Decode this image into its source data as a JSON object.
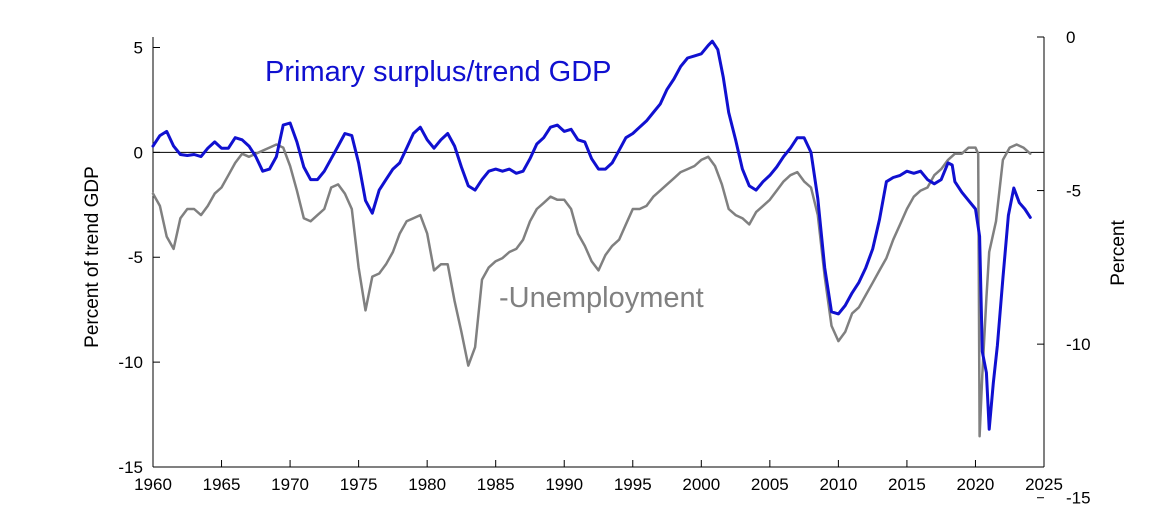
{
  "chart_data": {
    "type": "line",
    "title": "",
    "xlabel": "",
    "ylabel_left": "Percent of trend GDP",
    "ylabel_right": "Percent",
    "xlim": [
      1960,
      2025
    ],
    "ylim_left": [
      -15,
      5.5
    ],
    "ylim_right": [
      -14,
      0
    ],
    "grid": false,
    "legend": "inline labels",
    "x_ticks": [
      "1960",
      "1965",
      "1970",
      "1975",
      "1980",
      "1985",
      "1990",
      "1995",
      "2000",
      "2005",
      "2010",
      "2015",
      "2020",
      "2025"
    ],
    "y_ticks_left": [
      "5",
      "0",
      "-5",
      "-10",
      "-15"
    ],
    "y_ticks_right": [
      "0",
      "-5",
      "-10",
      "-15"
    ],
    "series": [
      {
        "name": "Primary surplus/trend GDP",
        "axis": "left",
        "color": "#1010d0",
        "points": [
          [
            1960.0,
            0.3
          ],
          [
            1960.5,
            0.8
          ],
          [
            1961.0,
            1.0
          ],
          [
            1961.5,
            0.3
          ],
          [
            1962.0,
            -0.1
          ],
          [
            1962.5,
            -0.15
          ],
          [
            1963.0,
            -0.1
          ],
          [
            1963.5,
            -0.2
          ],
          [
            1964.0,
            0.2
          ],
          [
            1964.5,
            0.5
          ],
          [
            1965.0,
            0.2
          ],
          [
            1965.5,
            0.2
          ],
          [
            1966.0,
            0.7
          ],
          [
            1966.5,
            0.6
          ],
          [
            1967.0,
            0.3
          ],
          [
            1967.5,
            -0.2
          ],
          [
            1968.0,
            -0.9
          ],
          [
            1968.5,
            -0.8
          ],
          [
            1969.0,
            -0.2
          ],
          [
            1969.5,
            1.3
          ],
          [
            1970.0,
            1.4
          ],
          [
            1970.5,
            0.5
          ],
          [
            1971.0,
            -0.7
          ],
          [
            1971.5,
            -1.3
          ],
          [
            1972.0,
            -1.3
          ],
          [
            1972.5,
            -0.9
          ],
          [
            1973.0,
            -0.3
          ],
          [
            1973.5,
            0.3
          ],
          [
            1974.0,
            0.9
          ],
          [
            1974.5,
            0.8
          ],
          [
            1975.0,
            -0.5
          ],
          [
            1975.5,
            -2.3
          ],
          [
            1976.0,
            -2.9
          ],
          [
            1976.5,
            -1.8
          ],
          [
            1977.0,
            -1.3
          ],
          [
            1977.5,
            -0.8
          ],
          [
            1978.0,
            -0.5
          ],
          [
            1978.5,
            0.2
          ],
          [
            1979.0,
            0.9
          ],
          [
            1979.5,
            1.2
          ],
          [
            1980.0,
            0.6
          ],
          [
            1980.5,
            0.2
          ],
          [
            1981.0,
            0.6
          ],
          [
            1981.5,
            0.9
          ],
          [
            1982.0,
            0.3
          ],
          [
            1982.5,
            -0.7
          ],
          [
            1983.0,
            -1.6
          ],
          [
            1983.5,
            -1.8
          ],
          [
            1984.0,
            -1.3
          ],
          [
            1984.5,
            -0.9
          ],
          [
            1985.0,
            -0.8
          ],
          [
            1985.5,
            -0.9
          ],
          [
            1986.0,
            -0.8
          ],
          [
            1986.5,
            -1.0
          ],
          [
            1987.0,
            -0.9
          ],
          [
            1987.5,
            -0.3
          ],
          [
            1988.0,
            0.4
          ],
          [
            1988.5,
            0.7
          ],
          [
            1989.0,
            1.2
          ],
          [
            1989.5,
            1.3
          ],
          [
            1990.0,
            1.0
          ],
          [
            1990.5,
            1.1
          ],
          [
            1991.0,
            0.6
          ],
          [
            1991.5,
            0.5
          ],
          [
            1992.0,
            -0.3
          ],
          [
            1992.5,
            -0.8
          ],
          [
            1993.0,
            -0.8
          ],
          [
            1993.5,
            -0.5
          ],
          [
            1994.0,
            0.1
          ],
          [
            1994.5,
            0.7
          ],
          [
            1995.0,
            0.9
          ],
          [
            1995.5,
            1.2
          ],
          [
            1996.0,
            1.5
          ],
          [
            1996.5,
            1.9
          ],
          [
            1997.0,
            2.3
          ],
          [
            1997.5,
            3.0
          ],
          [
            1998.0,
            3.5
          ],
          [
            1998.5,
            4.1
          ],
          [
            1999.0,
            4.5
          ],
          [
            1999.5,
            4.6
          ],
          [
            2000.0,
            4.7
          ],
          [
            2000.5,
            5.1
          ],
          [
            2000.8,
            5.3
          ],
          [
            2001.2,
            4.9
          ],
          [
            2001.6,
            3.6
          ],
          [
            2002.0,
            1.9
          ],
          [
            2002.5,
            0.6
          ],
          [
            2003.0,
            -0.8
          ],
          [
            2003.5,
            -1.6
          ],
          [
            2004.0,
            -1.8
          ],
          [
            2004.5,
            -1.4
          ],
          [
            2005.0,
            -1.1
          ],
          [
            2005.5,
            -0.7
          ],
          [
            2006.0,
            -0.2
          ],
          [
            2006.5,
            0.2
          ],
          [
            2007.0,
            0.7
          ],
          [
            2007.5,
            0.7
          ],
          [
            2008.0,
            0.0
          ],
          [
            2008.5,
            -2.2
          ],
          [
            2009.0,
            -5.5
          ],
          [
            2009.5,
            -7.6
          ],
          [
            2010.0,
            -7.7
          ],
          [
            2010.5,
            -7.3
          ],
          [
            2011.0,
            -6.7
          ],
          [
            2011.5,
            -6.2
          ],
          [
            2012.0,
            -5.5
          ],
          [
            2012.5,
            -4.6
          ],
          [
            2013.0,
            -3.2
          ],
          [
            2013.5,
            -1.4
          ],
          [
            2014.0,
            -1.2
          ],
          [
            2014.5,
            -1.1
          ],
          [
            2015.0,
            -0.9
          ],
          [
            2015.5,
            -1.0
          ],
          [
            2016.0,
            -0.9
          ],
          [
            2016.5,
            -1.3
          ],
          [
            2017.0,
            -1.5
          ],
          [
            2017.5,
            -1.3
          ],
          [
            2018.0,
            -0.5
          ],
          [
            2018.3,
            -0.6
          ],
          [
            2018.5,
            -1.4
          ],
          [
            2019.0,
            -1.9
          ],
          [
            2019.5,
            -2.3
          ],
          [
            2020.0,
            -2.7
          ],
          [
            2020.3,
            -4.0
          ],
          [
            2020.5,
            -9.5
          ],
          [
            2020.8,
            -10.5
          ],
          [
            2021.0,
            -13.2
          ],
          [
            2021.3,
            -11.0
          ],
          [
            2021.6,
            -9.2
          ],
          [
            2022.0,
            -6.0
          ],
          [
            2022.4,
            -3.0
          ],
          [
            2022.8,
            -1.7
          ],
          [
            2023.2,
            -2.4
          ],
          [
            2023.6,
            -2.7
          ],
          [
            2024.0,
            -3.1
          ]
        ]
      },
      {
        "name": "-Unemployment",
        "axis": "right",
        "color": "#808080",
        "points": [
          [
            1960.0,
            -5.1
          ],
          [
            1960.5,
            -5.5
          ],
          [
            1961.0,
            -6.5
          ],
          [
            1961.5,
            -6.9
          ],
          [
            1962.0,
            -5.9
          ],
          [
            1962.5,
            -5.6
          ],
          [
            1963.0,
            -5.6
          ],
          [
            1963.5,
            -5.8
          ],
          [
            1964.0,
            -5.5
          ],
          [
            1964.5,
            -5.1
          ],
          [
            1965.0,
            -4.9
          ],
          [
            1965.5,
            -4.5
          ],
          [
            1966.0,
            -4.1
          ],
          [
            1966.5,
            -3.8
          ],
          [
            1967.0,
            -3.9
          ],
          [
            1967.5,
            -3.8
          ],
          [
            1968.0,
            -3.7
          ],
          [
            1968.5,
            -3.6
          ],
          [
            1969.0,
            -3.5
          ],
          [
            1969.5,
            -3.6
          ],
          [
            1970.0,
            -4.2
          ],
          [
            1970.5,
            -5.0
          ],
          [
            1971.0,
            -5.9
          ],
          [
            1971.5,
            -6.0
          ],
          [
            1972.0,
            -5.8
          ],
          [
            1972.5,
            -5.6
          ],
          [
            1973.0,
            -4.9
          ],
          [
            1973.5,
            -4.8
          ],
          [
            1974.0,
            -5.1
          ],
          [
            1974.5,
            -5.6
          ],
          [
            1975.0,
            -7.5
          ],
          [
            1975.5,
            -8.9
          ],
          [
            1976.0,
            -7.8
          ],
          [
            1976.5,
            -7.7
          ],
          [
            1977.0,
            -7.4
          ],
          [
            1977.5,
            -7.0
          ],
          [
            1978.0,
            -6.4
          ],
          [
            1978.5,
            -6.0
          ],
          [
            1979.0,
            -5.9
          ],
          [
            1979.5,
            -5.8
          ],
          [
            1980.0,
            -6.4
          ],
          [
            1980.5,
            -7.6
          ],
          [
            1981.0,
            -7.4
          ],
          [
            1981.5,
            -7.4
          ],
          [
            1982.0,
            -8.6
          ],
          [
            1982.5,
            -9.6
          ],
          [
            1983.0,
            -10.7
          ],
          [
            1983.5,
            -10.1
          ],
          [
            1984.0,
            -7.9
          ],
          [
            1984.5,
            -7.5
          ],
          [
            1985.0,
            -7.3
          ],
          [
            1985.5,
            -7.2
          ],
          [
            1986.0,
            -7.0
          ],
          [
            1986.5,
            -6.9
          ],
          [
            1987.0,
            -6.6
          ],
          [
            1987.5,
            -6.0
          ],
          [
            1988.0,
            -5.6
          ],
          [
            1988.5,
            -5.4
          ],
          [
            1989.0,
            -5.2
          ],
          [
            1989.5,
            -5.3
          ],
          [
            1990.0,
            -5.3
          ],
          [
            1990.5,
            -5.6
          ],
          [
            1991.0,
            -6.4
          ],
          [
            1991.5,
            -6.8
          ],
          [
            1992.0,
            -7.3
          ],
          [
            1992.5,
            -7.6
          ],
          [
            1993.0,
            -7.1
          ],
          [
            1993.5,
            -6.8
          ],
          [
            1994.0,
            -6.6
          ],
          [
            1994.5,
            -6.1
          ],
          [
            1995.0,
            -5.6
          ],
          [
            1995.5,
            -5.6
          ],
          [
            1996.0,
            -5.5
          ],
          [
            1996.5,
            -5.2
          ],
          [
            1997.0,
            -5.0
          ],
          [
            1997.5,
            -4.8
          ],
          [
            1998.0,
            -4.6
          ],
          [
            1998.5,
            -4.4
          ],
          [
            1999.0,
            -4.3
          ],
          [
            1999.5,
            -4.2
          ],
          [
            2000.0,
            -4.0
          ],
          [
            2000.5,
            -3.9
          ],
          [
            2001.0,
            -4.2
          ],
          [
            2001.5,
            -4.8
          ],
          [
            2002.0,
            -5.6
          ],
          [
            2002.5,
            -5.8
          ],
          [
            2003.0,
            -5.9
          ],
          [
            2003.5,
            -6.1
          ],
          [
            2004.0,
            -5.7
          ],
          [
            2004.5,
            -5.5
          ],
          [
            2005.0,
            -5.3
          ],
          [
            2005.5,
            -5.0
          ],
          [
            2006.0,
            -4.7
          ],
          [
            2006.5,
            -4.5
          ],
          [
            2007.0,
            -4.4
          ],
          [
            2007.5,
            -4.7
          ],
          [
            2008.0,
            -4.9
          ],
          [
            2008.5,
            -5.8
          ],
          [
            2009.0,
            -7.8
          ],
          [
            2009.5,
            -9.4
          ],
          [
            2010.0,
            -9.9
          ],
          [
            2010.5,
            -9.6
          ],
          [
            2011.0,
            -9.0
          ],
          [
            2011.5,
            -8.8
          ],
          [
            2012.0,
            -8.4
          ],
          [
            2012.5,
            -8.0
          ],
          [
            2013.0,
            -7.6
          ],
          [
            2013.5,
            -7.2
          ],
          [
            2014.0,
            -6.6
          ],
          [
            2014.5,
            -6.1
          ],
          [
            2015.0,
            -5.6
          ],
          [
            2015.5,
            -5.2
          ],
          [
            2016.0,
            -5.0
          ],
          [
            2016.5,
            -4.9
          ],
          [
            2017.0,
            -4.5
          ],
          [
            2017.5,
            -4.3
          ],
          [
            2018.0,
            -4.0
          ],
          [
            2018.5,
            -3.8
          ],
          [
            2019.0,
            -3.8
          ],
          [
            2019.5,
            -3.6
          ],
          [
            2020.0,
            -3.6
          ],
          [
            2020.2,
            -3.8
          ],
          [
            2020.3,
            -13.0
          ],
          [
            2020.5,
            -11.0
          ],
          [
            2020.8,
            -8.5
          ],
          [
            2021.0,
            -7.0
          ],
          [
            2021.5,
            -6.0
          ],
          [
            2022.0,
            -4.0
          ],
          [
            2022.5,
            -3.6
          ],
          [
            2023.0,
            -3.5
          ],
          [
            2023.5,
            -3.6
          ],
          [
            2024.0,
            -3.8
          ]
        ]
      }
    ]
  }
}
